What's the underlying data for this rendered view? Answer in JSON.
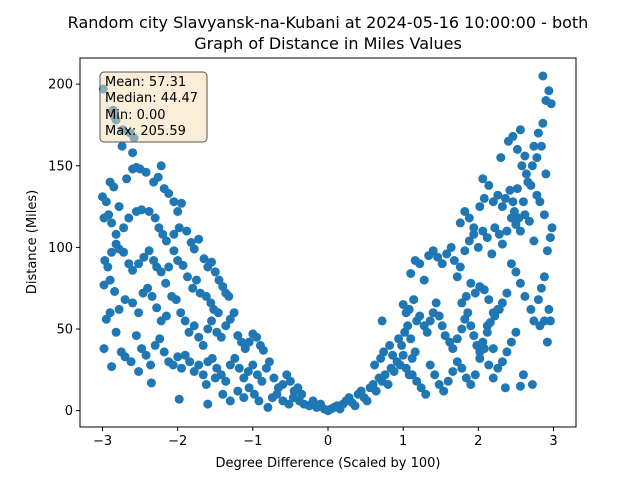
{
  "chart_data": {
    "type": "scatter",
    "title_line1": "Random city Slavyansk-na-Kubani at 2024-05-16 10:00:00  - both",
    "title_line2": "Graph of Distance in Miles Values",
    "xlabel": "Degree Difference (Scaled by 100)",
    "ylabel": "Distance (Miles)",
    "xlim": [
      -3.3,
      3.3
    ],
    "ylim": [
      -10,
      216
    ],
    "xticks": [
      -3,
      -2,
      -1,
      0,
      1,
      2,
      3
    ],
    "yticks": [
      0,
      50,
      100,
      150,
      200
    ],
    "grid": false,
    "marker_color": "#1f77b4",
    "stats_box": {
      "position": "top-left",
      "lines": [
        "Mean: 57.31",
        "Median: 44.47",
        "Min: 0.00",
        "Max: 205.59"
      ],
      "facecolor": "#f5deb3"
    },
    "points": [
      [
        -2.99,
        197
      ],
      [
        -2.86,
        184
      ],
      [
        -2.84,
        180
      ],
      [
        -2.82,
        178
      ],
      [
        -2.73,
        172
      ],
      [
        -2.63,
        170
      ],
      [
        -2.58,
        167
      ],
      [
        -2.74,
        162
      ],
      [
        -2.6,
        158
      ],
      [
        -3.0,
        131
      ],
      [
        -2.95,
        128
      ],
      [
        -2.9,
        140
      ],
      [
        -2.85,
        137
      ],
      [
        -2.78,
        125
      ],
      [
        -2.68,
        142
      ],
      [
        -2.6,
        148
      ],
      [
        -2.55,
        149
      ],
      [
        -2.5,
        148
      ],
      [
        -2.42,
        146
      ],
      [
        -2.32,
        140
      ],
      [
        -2.26,
        143
      ],
      [
        -2.22,
        150
      ],
      [
        -2.18,
        136
      ],
      [
        -2.12,
        133
      ],
      [
        -2.05,
        128
      ],
      [
        -2.0,
        122
      ],
      [
        -1.95,
        127
      ],
      [
        -2.98,
        118
      ],
      [
        -2.92,
        120
      ],
      [
        -2.88,
        115
      ],
      [
        -2.82,
        108
      ],
      [
        -2.72,
        112
      ],
      [
        -2.65,
        118
      ],
      [
        -2.55,
        122
      ],
      [
        -2.48,
        123
      ],
      [
        -2.38,
        122
      ],
      [
        -2.3,
        118
      ],
      [
        -2.25,
        112
      ],
      [
        -2.2,
        108
      ],
      [
        -2.15,
        104
      ],
      [
        -2.05,
        108
      ],
      [
        -1.98,
        112
      ],
      [
        -1.88,
        110
      ],
      [
        -1.82,
        103
      ],
      [
        -1.78,
        99
      ],
      [
        -1.72,
        105
      ],
      [
        -1.65,
        93
      ],
      [
        -1.6,
        88
      ],
      [
        -1.55,
        91
      ],
      [
        -1.5,
        85
      ],
      [
        -1.45,
        80
      ],
      [
        -1.4,
        76
      ],
      [
        -1.36,
        72
      ],
      [
        -1.32,
        70
      ],
      [
        -2.97,
        92
      ],
      [
        -2.93,
        88
      ],
      [
        -2.88,
        97
      ],
      [
        -2.82,
        102
      ],
      [
        -2.78,
        99
      ],
      [
        -2.72,
        97
      ],
      [
        -2.65,
        90
      ],
      [
        -2.6,
        86
      ],
      [
        -2.52,
        90
      ],
      [
        -2.45,
        94
      ],
      [
        -2.38,
        98
      ],
      [
        -2.32,
        92
      ],
      [
        -2.28,
        88
      ],
      [
        -2.22,
        85
      ],
      [
        -2.16,
        78
      ],
      [
        -2.12,
        88
      ],
      [
        -2.05,
        98
      ],
      [
        -2.0,
        92
      ],
      [
        -1.93,
        89
      ],
      [
        -1.87,
        82
      ],
      [
        -1.8,
        75
      ],
      [
        -1.75,
        80
      ],
      [
        -1.7,
        72
      ],
      [
        -1.62,
        70
      ],
      [
        -1.56,
        66
      ],
      [
        -1.52,
        62
      ],
      [
        -1.46,
        60
      ],
      [
        -2.98,
        77
      ],
      [
        -2.9,
        80
      ],
      [
        -2.84,
        73
      ],
      [
        -2.78,
        62
      ],
      [
        -2.7,
        68
      ],
      [
        -2.6,
        66
      ],
      [
        -2.52,
        60
      ],
      [
        -2.46,
        72
      ],
      [
        -2.4,
        75
      ],
      [
        -2.34,
        70
      ],
      [
        -2.28,
        63
      ],
      [
        -2.22,
        55
      ],
      [
        -2.15,
        58
      ],
      [
        -2.08,
        70
      ],
      [
        -2.02,
        68
      ],
      [
        -1.96,
        60
      ],
      [
        -1.9,
        55
      ],
      [
        -1.85,
        48
      ],
      [
        -1.78,
        52
      ],
      [
        -1.72,
        45
      ],
      [
        -1.66,
        40
      ],
      [
        -1.6,
        50
      ],
      [
        -1.55,
        55
      ],
      [
        -1.48,
        48
      ],
      [
        -1.42,
        45
      ],
      [
        -1.36,
        52
      ],
      [
        -1.3,
        56
      ],
      [
        -1.25,
        60
      ],
      [
        -1.2,
        46
      ],
      [
        -1.15,
        42
      ],
      [
        -1.1,
        38
      ],
      [
        -1.05,
        42
      ],
      [
        -1.0,
        47
      ],
      [
        -0.95,
        45
      ],
      [
        -0.9,
        40
      ],
      [
        -0.86,
        37
      ],
      [
        -2.95,
        56
      ],
      [
        -2.9,
        60
      ],
      [
        -2.82,
        48
      ],
      [
        -2.75,
        36
      ],
      [
        -2.7,
        33
      ],
      [
        -2.62,
        30
      ],
      [
        -2.55,
        46
      ],
      [
        -2.48,
        38
      ],
      [
        -2.42,
        34
      ],
      [
        -2.36,
        28
      ],
      [
        -2.3,
        40
      ],
      [
        -2.24,
        44
      ],
      [
        -2.18,
        36
      ],
      [
        -2.12,
        30
      ],
      [
        -2.06,
        28
      ],
      [
        -2.0,
        33
      ],
      [
        -1.95,
        26
      ],
      [
        -1.9,
        34
      ],
      [
        -1.84,
        30
      ],
      [
        -1.78,
        24
      ],
      [
        -1.72,
        28
      ],
      [
        -1.66,
        22
      ],
      [
        -1.6,
        30
      ],
      [
        -1.54,
        32
      ],
      [
        -1.48,
        26
      ],
      [
        -1.42,
        22
      ],
      [
        -1.36,
        18
      ],
      [
        -1.3,
        28
      ],
      [
        -1.24,
        32
      ],
      [
        -1.18,
        26
      ],
      [
        -1.12,
        20
      ],
      [
        -1.06,
        24
      ],
      [
        -1.0,
        28
      ],
      [
        -0.94,
        22
      ],
      [
        -0.88,
        18
      ],
      [
        -0.82,
        26
      ],
      [
        -0.78,
        30
      ],
      [
        -0.72,
        20
      ],
      [
        -0.66,
        14
      ],
      [
        -0.6,
        16
      ],
      [
        -0.55,
        22
      ],
      [
        -0.5,
        18
      ],
      [
        -0.45,
        12
      ],
      [
        -0.4,
        14
      ],
      [
        -0.35,
        10
      ],
      [
        -2.98,
        38
      ],
      [
        -2.88,
        27
      ],
      [
        -2.52,
        24
      ],
      [
        -2.35,
        17
      ],
      [
        -1.98,
        7
      ],
      [
        -1.6,
        4
      ],
      [
        -1.62,
        16
      ],
      [
        -1.5,
        20
      ],
      [
        -1.4,
        10
      ],
      [
        -1.3,
        6
      ],
      [
        -1.2,
        12
      ],
      [
        -1.12,
        8
      ],
      [
        -1.05,
        14
      ],
      [
        -0.98,
        10
      ],
      [
        -0.92,
        6
      ],
      [
        -0.8,
        2
      ],
      [
        -0.74,
        8
      ],
      [
        -0.68,
        10
      ],
      [
        -0.6,
        6
      ],
      [
        -0.52,
        4
      ],
      [
        -0.46,
        8
      ],
      [
        -0.38,
        6
      ],
      [
        -0.32,
        4
      ],
      [
        -0.25,
        3
      ],
      [
        -0.2,
        6
      ],
      [
        -0.15,
        2
      ],
      [
        -0.1,
        4
      ],
      [
        -0.05,
        1
      ],
      [
        0.0,
        0
      ],
      [
        0.04,
        1
      ],
      [
        0.08,
        2
      ],
      [
        0.12,
        3
      ],
      [
        0.16,
        1
      ],
      [
        0.2,
        4
      ],
      [
        0.24,
        6
      ],
      [
        0.28,
        8
      ],
      [
        0.32,
        5
      ],
      [
        0.36,
        3
      ],
      [
        0.4,
        10
      ],
      [
        0.44,
        12
      ],
      [
        0.48,
        8
      ],
      [
        0.52,
        6
      ],
      [
        0.56,
        14
      ],
      [
        0.6,
        16
      ],
      [
        0.64,
        12
      ],
      [
        0.68,
        20
      ],
      [
        0.72,
        18
      ],
      [
        0.76,
        22
      ],
      [
        0.8,
        16
      ],
      [
        0.84,
        26
      ],
      [
        0.88,
        24
      ],
      [
        0.92,
        30
      ],
      [
        0.96,
        28
      ],
      [
        1.0,
        34
      ],
      [
        1.04,
        26
      ],
      [
        1.08,
        22
      ],
      [
        1.12,
        32
      ],
      [
        1.16,
        36
      ],
      [
        0.62,
        28
      ],
      [
        0.7,
        32
      ],
      [
        0.74,
        36
      ],
      [
        0.82,
        40
      ],
      [
        0.86,
        34
      ],
      [
        0.94,
        44
      ],
      [
        0.98,
        40
      ],
      [
        1.02,
        48
      ],
      [
        1.06,
        52
      ],
      [
        1.1,
        44
      ],
      [
        0.72,
        55
      ],
      [
        1.0,
        65
      ],
      [
        1.04,
        60
      ],
      [
        1.08,
        62
      ],
      [
        1.14,
        68
      ],
      [
        1.18,
        55
      ],
      [
        1.22,
        58
      ],
      [
        1.28,
        52
      ],
      [
        1.32,
        48
      ],
      [
        1.36,
        55
      ],
      [
        1.4,
        60
      ],
      [
        1.44,
        66
      ],
      [
        1.48,
        58
      ],
      [
        1.52,
        52
      ],
      [
        1.56,
        46
      ],
      [
        1.62,
        42
      ],
      [
        1.66,
        38
      ],
      [
        1.72,
        44
      ],
      [
        1.78,
        50
      ],
      [
        1.82,
        56
      ],
      [
        1.86,
        60
      ],
      [
        1.9,
        52
      ],
      [
        1.94,
        46
      ],
      [
        1.98,
        40
      ],
      [
        2.02,
        36
      ],
      [
        2.06,
        42
      ],
      [
        2.12,
        48
      ],
      [
        2.16,
        54
      ],
      [
        2.22,
        58
      ],
      [
        2.28,
        62
      ],
      [
        1.1,
        84
      ],
      [
        1.16,
        92
      ],
      [
        1.22,
        90
      ],
      [
        1.28,
        80
      ],
      [
        1.34,
        95
      ],
      [
        1.4,
        98
      ],
      [
        1.46,
        94
      ],
      [
        1.52,
        90
      ],
      [
        1.58,
        96
      ],
      [
        1.64,
        100
      ],
      [
        1.68,
        92
      ],
      [
        1.72,
        82
      ],
      [
        1.76,
        88
      ],
      [
        1.82,
        98
      ],
      [
        1.88,
        104
      ],
      [
        1.94,
        108
      ],
      [
        2.0,
        100
      ],
      [
        2.06,
        110
      ],
      [
        2.12,
        106
      ],
      [
        2.18,
        96
      ],
      [
        2.22,
        112
      ],
      [
        2.28,
        108
      ],
      [
        2.32,
        102
      ],
      [
        2.38,
        110
      ],
      [
        2.44,
        118
      ],
      [
        2.5,
        114
      ],
      [
        2.56,
        110
      ],
      [
        2.62,
        120
      ],
      [
        2.68,
        116
      ],
      [
        2.74,
        104
      ],
      [
        1.76,
        115
      ],
      [
        1.82,
        122
      ],
      [
        1.88,
        118
      ],
      [
        1.94,
        112
      ],
      [
        2.02,
        125
      ],
      [
        2.08,
        130
      ],
      [
        2.14,
        138
      ],
      [
        2.2,
        128
      ],
      [
        2.26,
        132
      ],
      [
        2.32,
        125
      ],
      [
        2.36,
        130
      ],
      [
        2.42,
        135
      ],
      [
        2.48,
        122
      ],
      [
        2.54,
        118
      ],
      [
        2.6,
        128
      ],
      [
        2.66,
        140
      ],
      [
        2.72,
        150
      ],
      [
        2.78,
        155
      ],
      [
        2.84,
        162
      ],
      [
        2.9,
        145
      ],
      [
        2.06,
        142
      ],
      [
        2.3,
        155
      ],
      [
        2.4,
        165
      ],
      [
        2.46,
        168
      ],
      [
        2.52,
        160
      ],
      [
        2.56,
        172
      ],
      [
        2.62,
        156
      ],
      [
        2.74,
        162
      ],
      [
        2.8,
        170
      ],
      [
        2.86,
        176
      ],
      [
        2.9,
        190
      ],
      [
        2.94,
        196
      ],
      [
        2.97,
        188
      ],
      [
        2.86,
        205
      ],
      [
        2.98,
        112
      ],
      [
        2.96,
        106
      ],
      [
        2.92,
        98
      ],
      [
        2.88,
        82
      ],
      [
        2.84,
        75
      ],
      [
        2.8,
        68
      ],
      [
        2.94,
        62
      ],
      [
        2.88,
        55
      ],
      [
        2.82,
        52
      ],
      [
        2.74,
        55
      ],
      [
        2.7,
        62
      ],
      [
        2.62,
        70
      ],
      [
        2.56,
        78
      ],
      [
        2.5,
        85
      ],
      [
        2.44,
        90
      ],
      [
        2.38,
        72
      ],
      [
        2.32,
        66
      ],
      [
        2.26,
        62
      ],
      [
        2.2,
        60
      ],
      [
        2.14,
        68
      ],
      [
        2.08,
        74
      ],
      [
        2.02,
        76
      ],
      [
        1.96,
        72
      ],
      [
        1.9,
        78
      ],
      [
        1.84,
        70
      ],
      [
        1.78,
        66
      ],
      [
        2.5,
        48
      ],
      [
        2.44,
        42
      ],
      [
        2.38,
        36
      ],
      [
        2.32,
        30
      ],
      [
        2.26,
        26
      ],
      [
        2.2,
        20
      ],
      [
        2.14,
        28
      ],
      [
        2.08,
        38
      ],
      [
        2.02,
        32
      ],
      [
        1.96,
        22
      ],
      [
        1.9,
        16
      ],
      [
        1.84,
        20
      ],
      [
        1.78,
        26
      ],
      [
        1.72,
        30
      ],
      [
        1.66,
        24
      ],
      [
        1.6,
        18
      ],
      [
        1.54,
        12
      ],
      [
        1.48,
        16
      ],
      [
        1.42,
        22
      ],
      [
        1.36,
        28
      ],
      [
        2.72,
        16
      ],
      [
        2.6,
        22
      ],
      [
        2.56,
        15
      ],
      [
        2.36,
        14
      ],
      [
        2.2,
        38
      ],
      [
        2.12,
        52
      ],
      [
        1.3,
        10
      ],
      [
        1.24,
        14
      ],
      [
        1.18,
        18
      ],
      [
        1.12,
        22
      ],
      [
        2.92,
        42
      ],
      [
        2.96,
        55
      ],
      [
        2.88,
        120
      ],
      [
        2.82,
        128
      ],
      [
        2.78,
        132
      ],
      [
        2.7,
        138
      ],
      [
        2.64,
        145
      ],
      [
        2.58,
        150
      ],
      [
        2.52,
        136
      ],
      [
        2.46,
        128
      ]
    ]
  }
}
